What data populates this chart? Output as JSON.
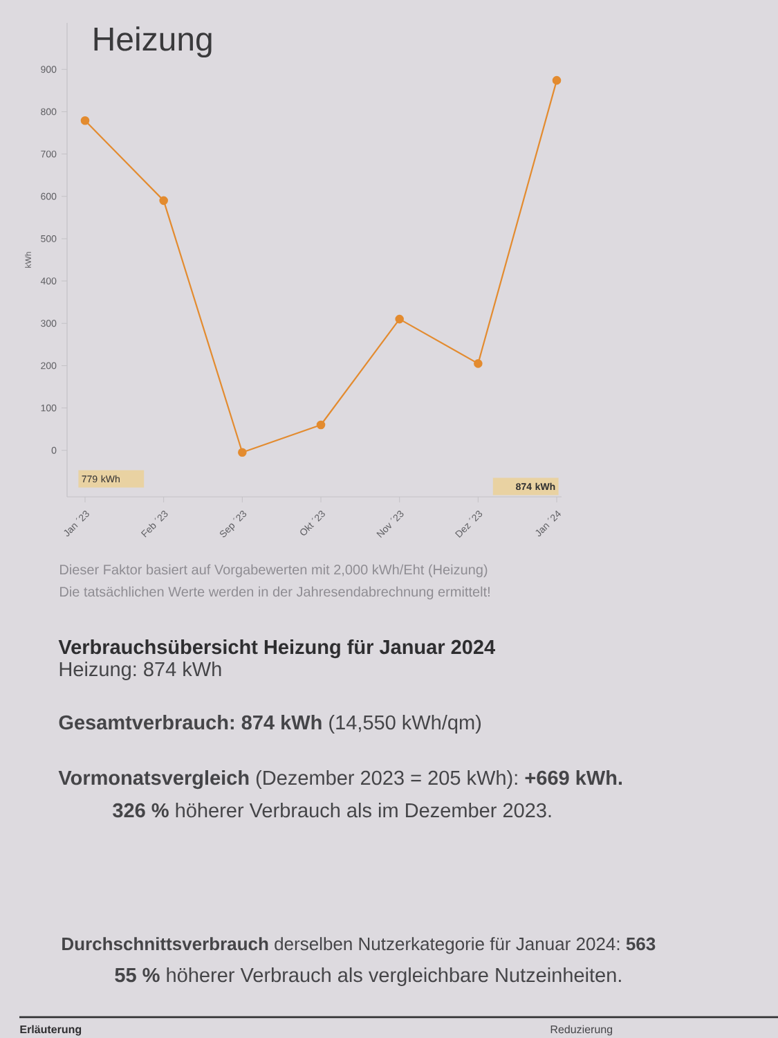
{
  "chart_data": {
    "type": "line",
    "title": "Heizung",
    "ylabel": "kWh",
    "categories": [
      "Jan ´23",
      "Feb ´23",
      "Sep ´23",
      "Okt ´23",
      "Nov ´23",
      "Dez ´23",
      "Jan ´24"
    ],
    "values": [
      779,
      590,
      -5,
      60,
      310,
      205,
      874
    ],
    "color": "#e38b2f",
    "marker": "circle",
    "line_style": "solid",
    "ylim": [
      -110,
      1010
    ],
    "yticks": [
      0,
      100,
      200,
      300,
      400,
      500,
      600,
      700,
      800,
      900
    ],
    "annotations": [
      "779 kWh",
      "874 kWh",
      "Dieser Faktor basiert auf Vorgabewerten mit 2,000 kWh/Eht (Heizung)",
      "Die tatsächlichen Werte werden in der Jahresendabrechnung ermittelt!",
      "Verbrauchsübersicht Heizung für Januar 2024",
      "Heizung: 874 kWh",
      "**Gesamtverbrauch: 874 kWh** (14,550 kWh/qm)",
      "**Vormonatsvergleich** (Dezember 2023 = 205 kWh): **+669 kWh.**",
      "**326 %** höherer Verbrauch als im Dezember 2023.",
      "**Durchschnittsverbrauch** derselben Nutzerkategorie für Januar 2024: **563**",
      "**55 %** höherer Verbrauch als vergleichbare Nutzeinheiten.",
      "Erläuterung",
      "Reduzierung"
    ]
  }
}
